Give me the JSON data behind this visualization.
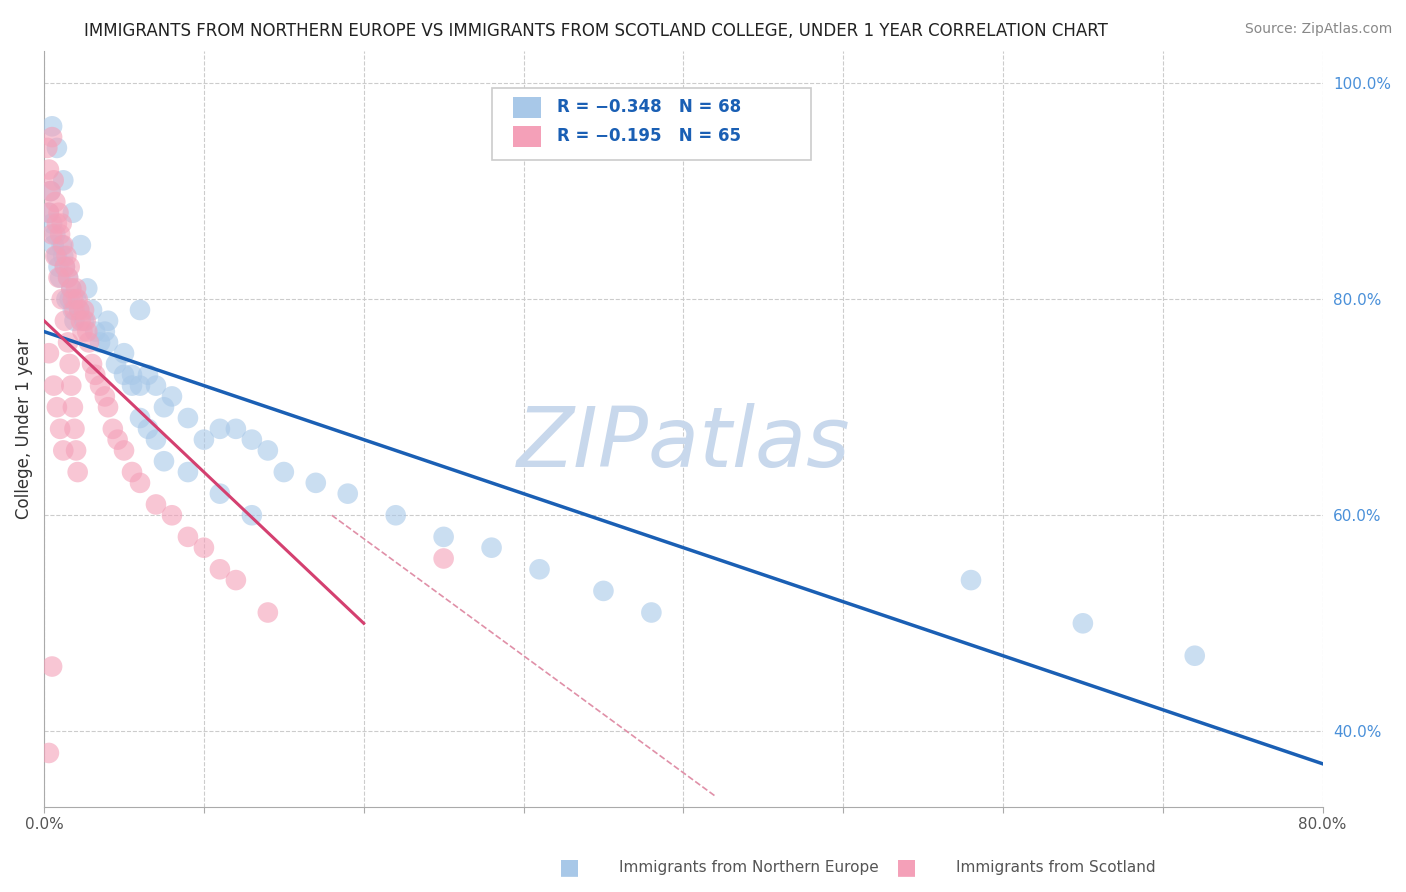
{
  "title": "IMMIGRANTS FROM NORTHERN EUROPE VS IMMIGRANTS FROM SCOTLAND COLLEGE, UNDER 1 YEAR CORRELATION CHART",
  "source": "Source: ZipAtlas.com",
  "ylabel": "College, Under 1 year",
  "legend_label_blue": "Immigrants from Northern Europe",
  "legend_label_pink": "Immigrants from Scotland",
  "legend_r_blue": "R = −0.348",
  "legend_n_blue": "N = 68",
  "legend_r_pink": "R = −0.195",
  "legend_n_pink": "N = 65",
  "xlim": [
    0.0,
    0.8
  ],
  "ylim": [
    0.33,
    1.03
  ],
  "xticks": [
    0.0,
    0.1,
    0.2,
    0.3,
    0.4,
    0.5,
    0.6,
    0.7,
    0.8
  ],
  "yticks": [
    0.4,
    0.6,
    0.8,
    1.0
  ],
  "ytick_labels_right": [
    "40.0%",
    "60.0%",
    "80.0%",
    "100.0%"
  ],
  "blue_color": "#a8c8e8",
  "pink_color": "#f4a0b8",
  "blue_line_color": "#1a5fb4",
  "pink_line_color": "#d44070",
  "pink_dash_color": "#e090a8",
  "watermark": "ZIPatlas",
  "watermark_color": "#c8d8ec",
  "background_color": "#ffffff",
  "grid_color": "#cccccc",
  "blue_dots_x": [
    0.003,
    0.004,
    0.005,
    0.006,
    0.007,
    0.008,
    0.009,
    0.01,
    0.011,
    0.012,
    0.013,
    0.014,
    0.015,
    0.016,
    0.017,
    0.018,
    0.019,
    0.02,
    0.022,
    0.025,
    0.027,
    0.03,
    0.032,
    0.035,
    0.038,
    0.04,
    0.045,
    0.05,
    0.055,
    0.06,
    0.065,
    0.07,
    0.075,
    0.08,
    0.09,
    0.1,
    0.11,
    0.12,
    0.13,
    0.14,
    0.15,
    0.17,
    0.19,
    0.22,
    0.25,
    0.28,
    0.31,
    0.35,
    0.38,
    0.04,
    0.05,
    0.055,
    0.06,
    0.065,
    0.07,
    0.075,
    0.09,
    0.11,
    0.13,
    0.005,
    0.008,
    0.012,
    0.018,
    0.023,
    0.06,
    0.58,
    0.65,
    0.72
  ],
  "blue_dots_y": [
    0.88,
    0.9,
    0.87,
    0.85,
    0.86,
    0.84,
    0.83,
    0.82,
    0.85,
    0.84,
    0.83,
    0.8,
    0.82,
    0.8,
    0.81,
    0.79,
    0.78,
    0.8,
    0.79,
    0.78,
    0.81,
    0.79,
    0.77,
    0.76,
    0.77,
    0.76,
    0.74,
    0.75,
    0.73,
    0.72,
    0.73,
    0.72,
    0.7,
    0.71,
    0.69,
    0.67,
    0.68,
    0.68,
    0.67,
    0.66,
    0.64,
    0.63,
    0.62,
    0.6,
    0.58,
    0.57,
    0.55,
    0.53,
    0.51,
    0.78,
    0.73,
    0.72,
    0.69,
    0.68,
    0.67,
    0.65,
    0.64,
    0.62,
    0.6,
    0.96,
    0.94,
    0.91,
    0.88,
    0.85,
    0.79,
    0.54,
    0.5,
    0.47
  ],
  "pink_dots_x": [
    0.002,
    0.003,
    0.004,
    0.005,
    0.006,
    0.007,
    0.008,
    0.009,
    0.01,
    0.011,
    0.012,
    0.013,
    0.014,
    0.015,
    0.016,
    0.017,
    0.018,
    0.019,
    0.02,
    0.021,
    0.022,
    0.023,
    0.024,
    0.025,
    0.026,
    0.027,
    0.028,
    0.03,
    0.032,
    0.035,
    0.038,
    0.04,
    0.043,
    0.046,
    0.05,
    0.055,
    0.06,
    0.07,
    0.08,
    0.09,
    0.1,
    0.11,
    0.12,
    0.14,
    0.003,
    0.005,
    0.007,
    0.009,
    0.011,
    0.013,
    0.015,
    0.016,
    0.017,
    0.018,
    0.019,
    0.02,
    0.021,
    0.003,
    0.006,
    0.008,
    0.01,
    0.012,
    0.005,
    0.003,
    0.25
  ],
  "pink_dots_y": [
    0.94,
    0.92,
    0.9,
    0.95,
    0.91,
    0.89,
    0.87,
    0.88,
    0.86,
    0.87,
    0.85,
    0.83,
    0.84,
    0.82,
    0.83,
    0.81,
    0.8,
    0.79,
    0.81,
    0.8,
    0.79,
    0.78,
    0.77,
    0.79,
    0.78,
    0.77,
    0.76,
    0.74,
    0.73,
    0.72,
    0.71,
    0.7,
    0.68,
    0.67,
    0.66,
    0.64,
    0.63,
    0.61,
    0.6,
    0.58,
    0.57,
    0.55,
    0.54,
    0.51,
    0.88,
    0.86,
    0.84,
    0.82,
    0.8,
    0.78,
    0.76,
    0.74,
    0.72,
    0.7,
    0.68,
    0.66,
    0.64,
    0.75,
    0.72,
    0.7,
    0.68,
    0.66,
    0.46,
    0.38,
    0.56
  ],
  "blue_line_x": [
    0.0,
    0.8
  ],
  "blue_line_y": [
    0.77,
    0.37
  ],
  "pink_line_x": [
    0.0,
    0.2
  ],
  "pink_line_y": [
    0.78,
    0.5
  ],
  "ref_line_x": [
    0.18,
    0.42
  ],
  "ref_line_y": [
    0.6,
    0.34
  ]
}
